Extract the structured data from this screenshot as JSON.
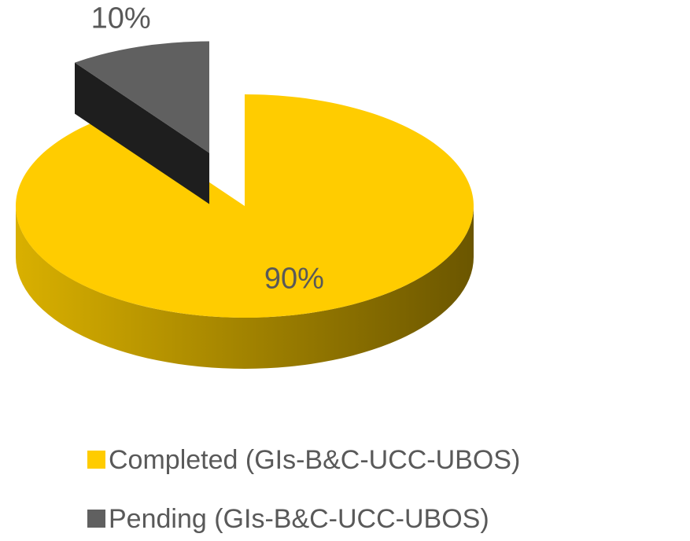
{
  "chart_data": {
    "type": "pie3d",
    "categories": [
      "Completed (GIs-B&C-UCC-UBOS)",
      "Pending (GIs-B&C-UCC-UBOS)"
    ],
    "values": [
      90,
      10
    ],
    "value_labels": [
      "90%",
      "10%"
    ],
    "colors": [
      "#FFCC00",
      "#606060"
    ],
    "side_colors": [
      [
        "#d9b000",
        "#6b5600"
      ],
      [
        "#3a3a3a",
        "#1e1e1e"
      ]
    ],
    "legend": "bottom"
  }
}
